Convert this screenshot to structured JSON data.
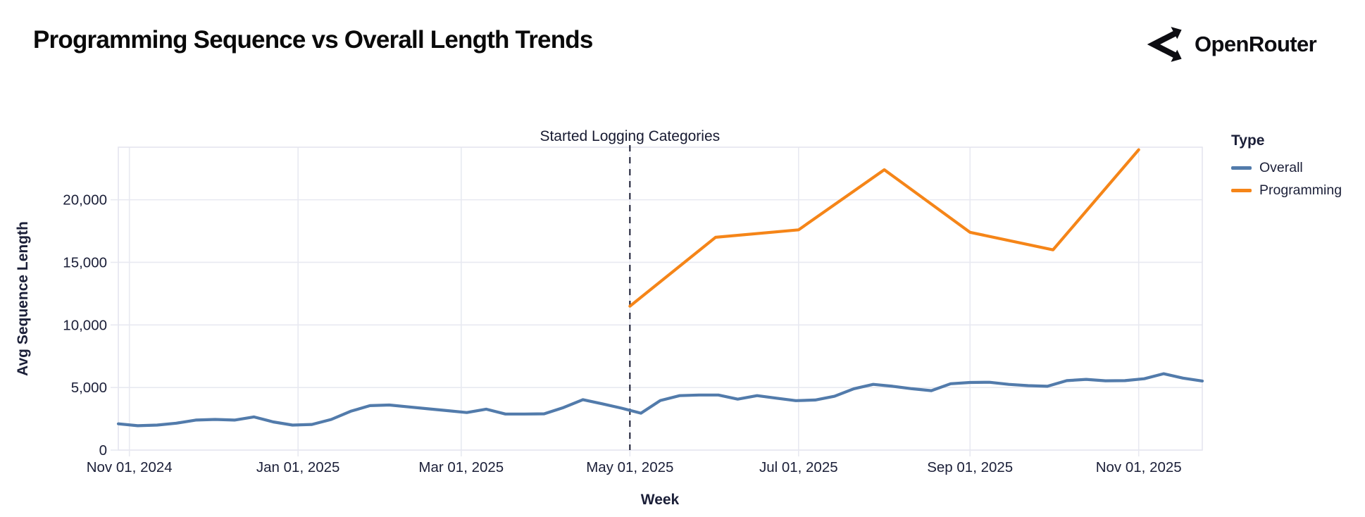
{
  "header": {
    "title": "Programming Sequence vs Overall Length Trends",
    "brand": "OpenRouter"
  },
  "legend": {
    "title": "Type",
    "entries": [
      {
        "label": "Overall",
        "color": "#527bab"
      },
      {
        "label": "Programming",
        "color": "#f58518"
      }
    ]
  },
  "colors": {
    "grid": "#e8e9f1",
    "plot_border": "#e4e5ee",
    "axis_text": "#1b1f38",
    "annotation": "#171a31",
    "overall_line": "#527bab",
    "programming_line": "#f58518"
  },
  "chart_data": {
    "type": "line",
    "title": "Programming Sequence vs Overall Length Trends",
    "xlabel": "Week",
    "ylabel": "Avg Sequence Length",
    "grid": true,
    "legend_position": "right",
    "legend_title": "Type",
    "x_domain": [
      "2024-10-28",
      "2025-11-24"
    ],
    "ylim": [
      0,
      24200
    ],
    "y_ticks": [
      {
        "value": 0,
        "label": "0"
      },
      {
        "value": 5000,
        "label": "5,000"
      },
      {
        "value": 10000,
        "label": "10,000"
      },
      {
        "value": 15000,
        "label": "15,000"
      },
      {
        "value": 20000,
        "label": "20,000"
      }
    ],
    "x_ticks": [
      {
        "date": "2024-11-01",
        "label": "Nov 01, 2024"
      },
      {
        "date": "2025-01-01",
        "label": "Jan 01, 2025"
      },
      {
        "date": "2025-03-01",
        "label": "Mar 01, 2025"
      },
      {
        "date": "2025-05-01",
        "label": "May 01, 2025"
      },
      {
        "date": "2025-07-01",
        "label": "Jul 01, 2025"
      },
      {
        "date": "2025-09-01",
        "label": "Sep 01, 2025"
      },
      {
        "date": "2025-11-01",
        "label": "Nov 01, 2025"
      }
    ],
    "annotation": {
      "label": "Started Logging Categories",
      "date": "2025-05-01"
    },
    "series": [
      {
        "name": "Overall",
        "color": "#527bab",
        "points": [
          [
            "2024-10-28",
            2100
          ],
          [
            "2024-11-04",
            1950
          ],
          [
            "2024-11-11",
            2000
          ],
          [
            "2024-11-18",
            2150
          ],
          [
            "2024-11-25",
            2400
          ],
          [
            "2024-12-02",
            2450
          ],
          [
            "2024-12-09",
            2400
          ],
          [
            "2024-12-16",
            2650
          ],
          [
            "2024-12-23",
            2250
          ],
          [
            "2024-12-30",
            2000
          ],
          [
            "2025-01-06",
            2050
          ],
          [
            "2025-01-13",
            2450
          ],
          [
            "2025-01-20",
            3100
          ],
          [
            "2025-01-27",
            3550
          ],
          [
            "2025-02-03",
            3600
          ],
          [
            "2025-02-10",
            3450
          ],
          [
            "2025-02-17",
            3300
          ],
          [
            "2025-02-24",
            3150
          ],
          [
            "2025-03-03",
            3000
          ],
          [
            "2025-03-10",
            3270
          ],
          [
            "2025-03-17",
            2880
          ],
          [
            "2025-03-24",
            2880
          ],
          [
            "2025-03-31",
            2900
          ],
          [
            "2025-04-07",
            3400
          ],
          [
            "2025-04-14",
            4030
          ],
          [
            "2025-04-21",
            3700
          ],
          [
            "2025-04-28",
            3350
          ],
          [
            "2025-05-05",
            2950
          ],
          [
            "2025-05-12",
            3960
          ],
          [
            "2025-05-19",
            4350
          ],
          [
            "2025-05-26",
            4400
          ],
          [
            "2025-06-02",
            4400
          ],
          [
            "2025-06-09",
            4070
          ],
          [
            "2025-06-16",
            4350
          ],
          [
            "2025-06-23",
            4150
          ],
          [
            "2025-06-30",
            3950
          ],
          [
            "2025-07-07",
            4000
          ],
          [
            "2025-07-14",
            4300
          ],
          [
            "2025-07-21",
            4900
          ],
          [
            "2025-07-28",
            5250
          ],
          [
            "2025-08-04",
            5100
          ],
          [
            "2025-08-11",
            4900
          ],
          [
            "2025-08-18",
            4750
          ],
          [
            "2025-08-25",
            5300
          ],
          [
            "2025-09-01",
            5400
          ],
          [
            "2025-09-08",
            5420
          ],
          [
            "2025-09-15",
            5250
          ],
          [
            "2025-09-22",
            5150
          ],
          [
            "2025-09-29",
            5100
          ],
          [
            "2025-10-06",
            5550
          ],
          [
            "2025-10-13",
            5650
          ],
          [
            "2025-10-20",
            5540
          ],
          [
            "2025-10-27",
            5550
          ],
          [
            "2025-11-03",
            5700
          ],
          [
            "2025-11-10",
            6100
          ],
          [
            "2025-11-17",
            5750
          ],
          [
            "2025-11-24",
            5520
          ]
        ]
      },
      {
        "name": "Programming",
        "color": "#f58518",
        "points": [
          [
            "2025-05-01",
            11500
          ],
          [
            "2025-06-01",
            17000
          ],
          [
            "2025-07-01",
            17600
          ],
          [
            "2025-08-01",
            22400
          ],
          [
            "2025-09-01",
            17400
          ],
          [
            "2025-10-01",
            16000
          ],
          [
            "2025-11-01",
            24000
          ]
        ]
      }
    ]
  }
}
